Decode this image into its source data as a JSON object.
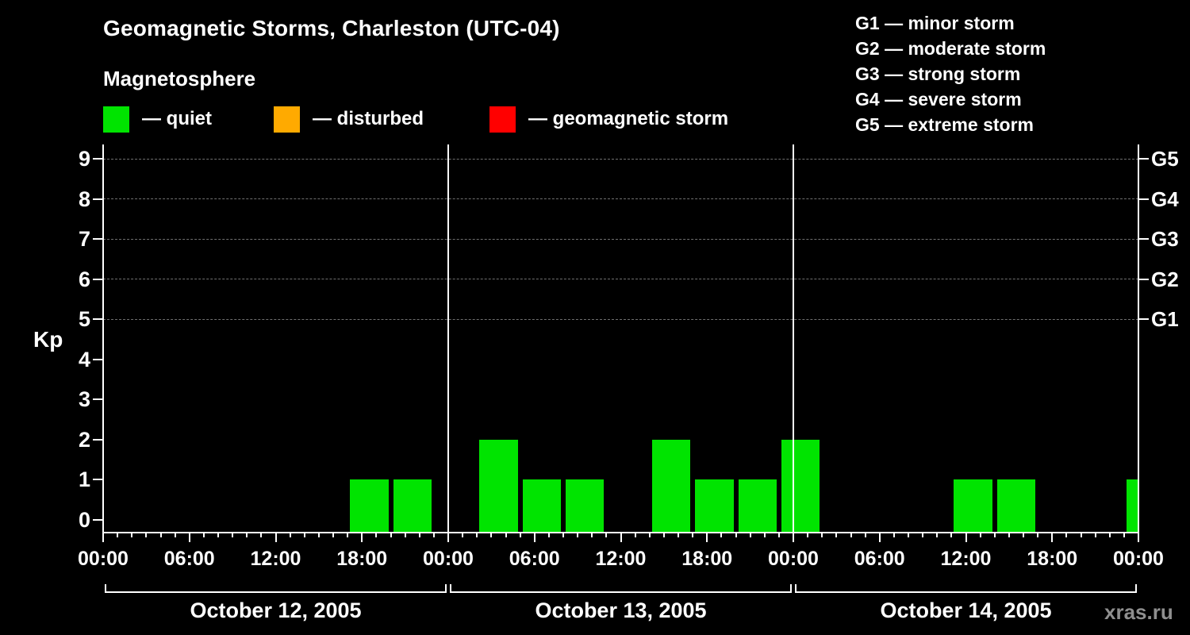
{
  "header": {
    "title": "Geomagnetic Storms, Charleston (UTC-04)",
    "subtitle": "Magnetosphere",
    "watermark": "xras.ru"
  },
  "legend": {
    "items": [
      {
        "name": "quiet",
        "label": "— quiet",
        "color": "#00e400"
      },
      {
        "name": "disturbed",
        "label": "— disturbed",
        "color": "#ffaa00"
      },
      {
        "name": "geomagnetic-storm",
        "label": "— geomagnetic storm",
        "color": "#ff0000"
      }
    ],
    "g_scale": [
      "G1 — minor storm",
      "G2 — moderate storm",
      "G3 — strong storm",
      "G4 — severe storm",
      "G5 — extreme storm"
    ]
  },
  "chart_data": {
    "type": "bar",
    "title": "Geomagnetic Storms, Charleston (UTC-04)",
    "ylabel": "Kp",
    "ylim": [
      0,
      9.4
    ],
    "y_ticks": [
      0,
      1,
      2,
      3,
      4,
      5,
      6,
      7,
      8,
      9
    ],
    "grid": "dashed horizontal lines at Kp 5,6,7,8,9",
    "right_axis": [
      {
        "kp": 5,
        "label": "G1"
      },
      {
        "kp": 6,
        "label": "G2"
      },
      {
        "kp": 7,
        "label": "G3"
      },
      {
        "kp": 8,
        "label": "G4"
      },
      {
        "kp": 9,
        "label": "G5"
      }
    ],
    "x_ticks": [
      {
        "hour": 0,
        "label": "00:00"
      },
      {
        "hour": 6,
        "label": "06:00"
      },
      {
        "hour": 12,
        "label": "12:00"
      },
      {
        "hour": 18,
        "label": "18:00"
      },
      {
        "hour": 24,
        "label": "00:00"
      },
      {
        "hour": 30,
        "label": "06:00"
      },
      {
        "hour": 36,
        "label": "12:00"
      },
      {
        "hour": 42,
        "label": "18:00"
      },
      {
        "hour": 48,
        "label": "00:00"
      },
      {
        "hour": 54,
        "label": "06:00"
      },
      {
        "hour": 60,
        "label": "12:00"
      },
      {
        "hour": 66,
        "label": "18:00"
      },
      {
        "hour": 72,
        "label": "00:00"
      }
    ],
    "interval_hours": 3,
    "days": [
      {
        "date": "October 12, 2005",
        "bars": [
          {
            "start_hour": 17,
            "kp": 1
          },
          {
            "start_hour": 20,
            "kp": 1
          }
        ]
      },
      {
        "date": "October 13, 2005",
        "bars": [
          {
            "start_hour": 2,
            "kp": 2
          },
          {
            "start_hour": 5,
            "kp": 1
          },
          {
            "start_hour": 8,
            "kp": 1
          },
          {
            "start_hour": 14,
            "kp": 2
          },
          {
            "start_hour": 17,
            "kp": 1
          },
          {
            "start_hour": 20,
            "kp": 1
          },
          {
            "start_hour": 23,
            "kp": 2
          }
        ]
      },
      {
        "date": "October 14, 2005",
        "bars": [
          {
            "start_hour": 11,
            "kp": 1
          },
          {
            "start_hour": 14,
            "kp": 1
          },
          {
            "start_hour": 23,
            "kp": 1
          }
        ]
      }
    ]
  }
}
